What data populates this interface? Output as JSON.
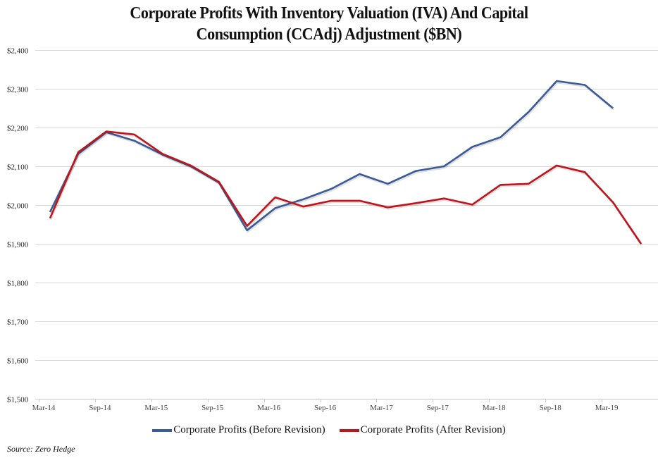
{
  "chart_data": {
    "type": "line",
    "title": "Corporate Profits With Inventory Valuation (IVA) And Capital Consumption (CCAdj) Adjustment ($BN)",
    "title_lines": [
      "Corporate Profits With Inventory Valuation (IVA) And Capital",
      "Consumption (CCAdj) Adjustment ($BN)"
    ],
    "xlabel": "",
    "ylabel": "",
    "ylim": [
      1500,
      2400
    ],
    "yticks": [
      1500,
      1600,
      1700,
      1800,
      1900,
      2000,
      2100,
      2200,
      2300,
      2400
    ],
    "ytick_labels": [
      "$1,500",
      "$1,600",
      "$1,700",
      "$1,800",
      "$1,900",
      "$2,000",
      "$2,100",
      "$2,200",
      "$2,300",
      "$2,400"
    ],
    "xtick_labels": [
      "Mar-14",
      "Sep-14",
      "Mar-15",
      "Sep-15",
      "Mar-16",
      "Sep-16",
      "Mar-17",
      "Sep-17",
      "Mar-18",
      "Sep-18",
      "Mar-19"
    ],
    "x": [
      "Mar-14",
      "Jun-14",
      "Sep-14",
      "Dec-14",
      "Mar-15",
      "Jun-15",
      "Sep-15",
      "Dec-15",
      "Mar-16",
      "Jun-16",
      "Sep-16",
      "Dec-16",
      "Mar-17",
      "Jun-17",
      "Sep-17",
      "Dec-17",
      "Mar-18",
      "Jun-18",
      "Sep-18",
      "Dec-18",
      "Mar-19",
      "Jun-19"
    ],
    "grid": true,
    "legend_position": "bottom",
    "series": [
      {
        "name": "Corporate Profits (Before Revision)",
        "color": "#3a5a98",
        "values": [
          1982,
          2132,
          2188,
          2166,
          2130,
          2100,
          2058,
          1935,
          1992,
          2015,
          2042,
          2080,
          2055,
          2088,
          2100,
          2150,
          2175,
          2240,
          2320,
          2310,
          2250,
          null
        ]
      },
      {
        "name": "Corporate Profits (After Revision)",
        "color": "#c0141c",
        "values": [
          1966,
          2136,
          2190,
          2182,
          2132,
          2102,
          2060,
          1946,
          2020,
          1996,
          2011,
          2011,
          1994,
          2005,
          2017,
          2001,
          2052,
          2055,
          2102,
          2085,
          2007,
          1900
        ]
      }
    ],
    "source": "Source: Zero Hedge"
  }
}
